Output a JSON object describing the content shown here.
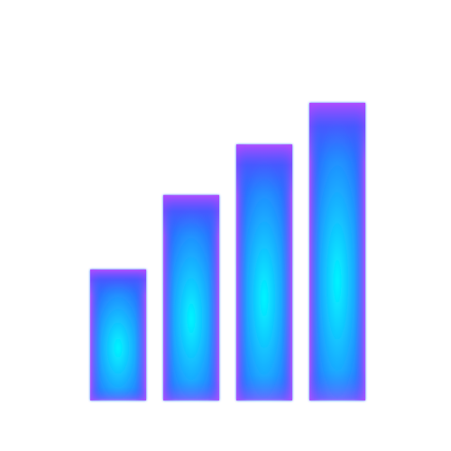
{
  "icon": {
    "name": "signal-strength-bars-icon",
    "bar_count": 4,
    "levels": [
      0.44,
      0.69,
      0.86,
      1.0
    ],
    "colors": {
      "glow_core": "#00f7ff",
      "mid": "#1e88ff",
      "edge": "#8a2cff",
      "accent": "#c04bff",
      "background": "#ffffff"
    }
  }
}
